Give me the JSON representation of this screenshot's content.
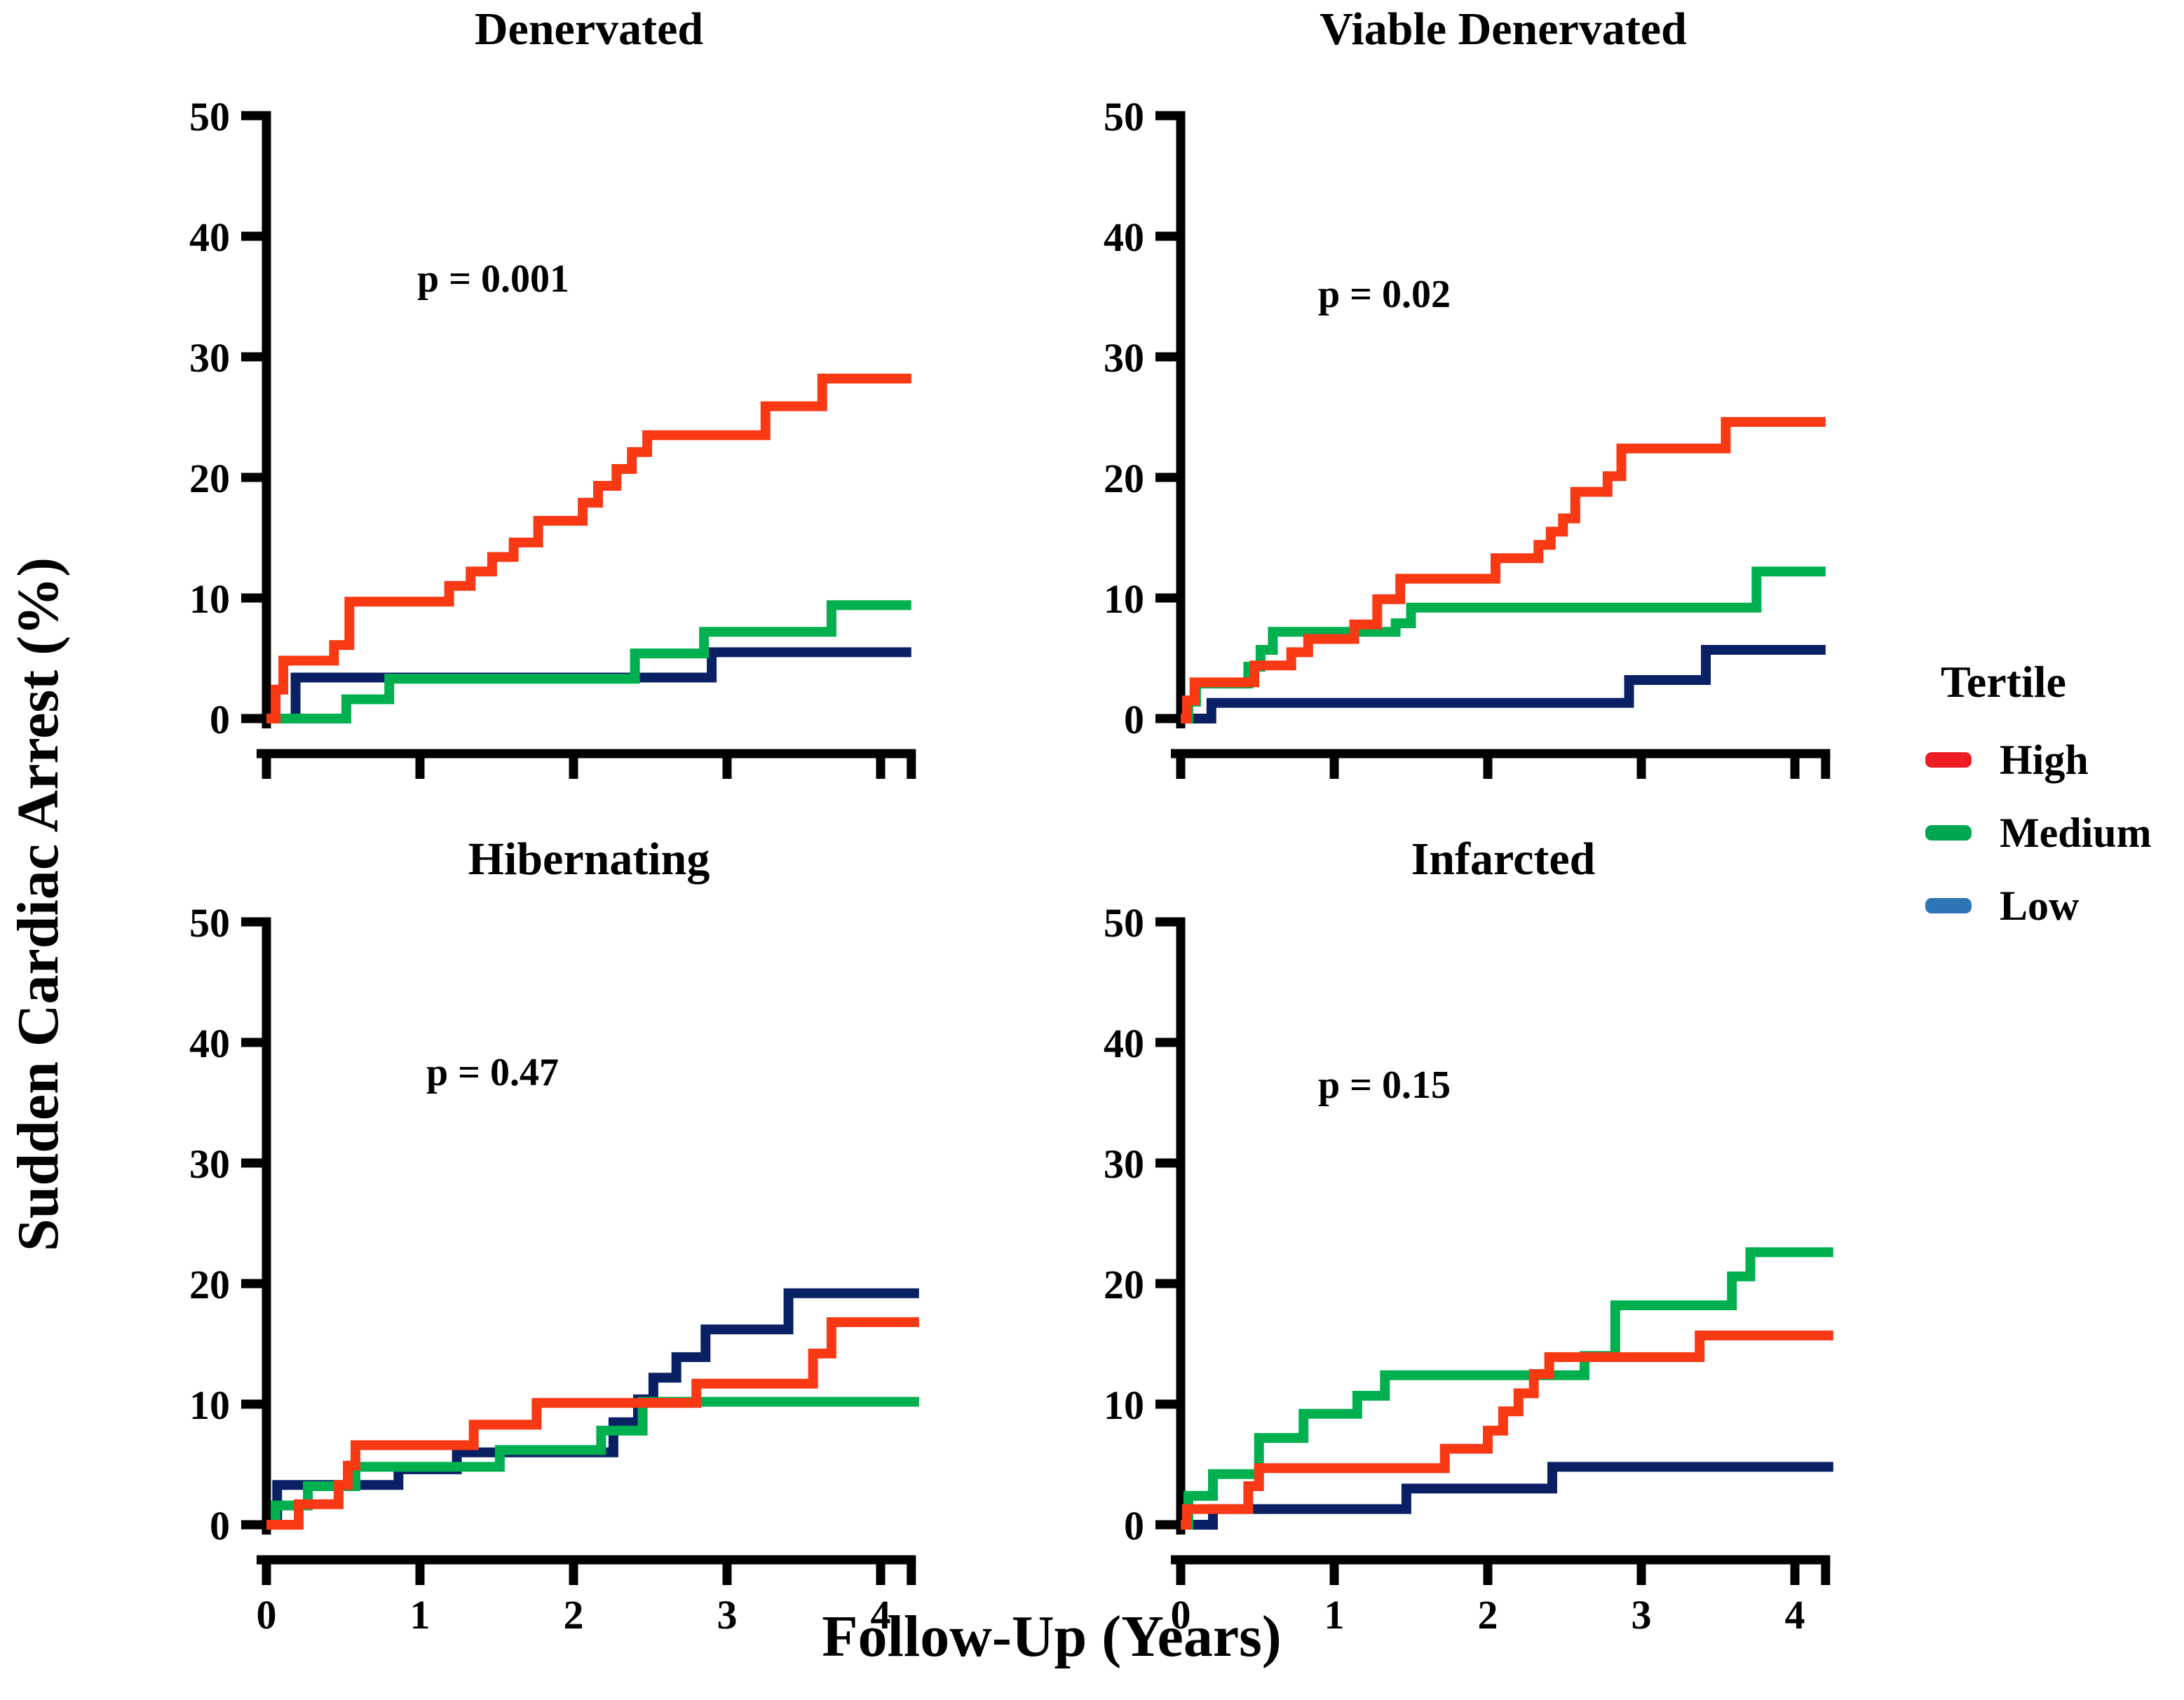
{
  "figure": {
    "x_axis_label": "Follow-Up (Years)",
    "y_axis_label": "Sudden Cardiac Arrest (%)",
    "background_color": "#ffffff",
    "axis_color": "#000000"
  },
  "legend": {
    "title": "Tertile",
    "items": [
      {
        "label": "High",
        "color": "#ee1c24"
      },
      {
        "label": "Medium",
        "color": "#00a651"
      },
      {
        "label": "Low",
        "color": "#2e75b6"
      }
    ]
  },
  "chart_data": [
    {
      "type": "line",
      "subtype": "kaplan-meier-step",
      "title": "Denervated",
      "p_label": "p = 0.001",
      "xlabel": "Follow-Up (Years)",
      "ylabel": "Sudden Cardiac Arrest (%)",
      "xlim": [
        0,
        4.3
      ],
      "ylim": [
        0,
        50
      ],
      "xticks": [
        0,
        1,
        2,
        3,
        4
      ],
      "yticks": [
        0,
        10,
        20,
        30,
        40,
        50
      ],
      "x_tick_labels_visible": false,
      "grid": false,
      "series": [
        {
          "name": "Low",
          "color": "#0a2065",
          "points": [
            [
              0,
              0
            ],
            [
              0.19,
              0
            ],
            [
              0.19,
              3.4
            ],
            [
              2.9,
              3.4
            ],
            [
              2.9,
              5.5
            ],
            [
              4.2,
              5.5
            ]
          ]
        },
        {
          "name": "Medium",
          "color": "#00b04f",
          "points": [
            [
              0,
              0
            ],
            [
              0.52,
              0
            ],
            [
              0.52,
              1.6
            ],
            [
              0.8,
              1.6
            ],
            [
              0.8,
              3.3
            ],
            [
              2.4,
              3.3
            ],
            [
              2.4,
              5.4
            ],
            [
              2.85,
              5.4
            ],
            [
              2.85,
              7.2
            ],
            [
              3.68,
              7.2
            ],
            [
              3.68,
              9.4
            ],
            [
              4.2,
              9.4
            ]
          ]
        },
        {
          "name": "High",
          "color": "#f83913",
          "points": [
            [
              0,
              0
            ],
            [
              0.06,
              0
            ],
            [
              0.06,
              2.4
            ],
            [
              0.11,
              2.4
            ],
            [
              0.11,
              4.8
            ],
            [
              0.44,
              4.8
            ],
            [
              0.44,
              6.1
            ],
            [
              0.54,
              6.1
            ],
            [
              0.54,
              9.7
            ],
            [
              1.19,
              9.7
            ],
            [
              1.19,
              11.0
            ],
            [
              1.33,
              11.0
            ],
            [
              1.33,
              12.2
            ],
            [
              1.47,
              12.2
            ],
            [
              1.47,
              13.4
            ],
            [
              1.61,
              13.4
            ],
            [
              1.61,
              14.6
            ],
            [
              1.77,
              14.6
            ],
            [
              1.77,
              16.4
            ],
            [
              2.06,
              16.4
            ],
            [
              2.06,
              17.9
            ],
            [
              2.16,
              17.9
            ],
            [
              2.16,
              19.3
            ],
            [
              2.28,
              19.3
            ],
            [
              2.28,
              20.7
            ],
            [
              2.38,
              20.7
            ],
            [
              2.38,
              22.1
            ],
            [
              2.48,
              22.1
            ],
            [
              2.48,
              23.5
            ],
            [
              3.25,
              23.5
            ],
            [
              3.25,
              25.9
            ],
            [
              3.62,
              25.9
            ],
            [
              3.62,
              28.2
            ],
            [
              4.2,
              28.2
            ]
          ]
        }
      ]
    },
    {
      "type": "line",
      "subtype": "kaplan-meier-step",
      "title": "Viable Denervated",
      "p_label": "p = 0.02",
      "xlabel": "Follow-Up (Years)",
      "ylabel": "Sudden Cardiac Arrest (%)",
      "xlim": [
        0,
        4.3
      ],
      "ylim": [
        0,
        50
      ],
      "xticks": [
        0,
        1,
        2,
        3,
        4
      ],
      "yticks": [
        0,
        10,
        20,
        30,
        40,
        50
      ],
      "x_tick_labels_visible": false,
      "grid": false,
      "series": [
        {
          "name": "Low",
          "color": "#0a2065",
          "points": [
            [
              0,
              0
            ],
            [
              0.2,
              0
            ],
            [
              0.2,
              1.3
            ],
            [
              2.92,
              1.3
            ],
            [
              2.92,
              3.2
            ],
            [
              3.42,
              3.2
            ],
            [
              3.42,
              5.7
            ],
            [
              4.2,
              5.7
            ]
          ]
        },
        {
          "name": "Medium",
          "color": "#00b04f",
          "points": [
            [
              0,
              0
            ],
            [
              0.05,
              0
            ],
            [
              0.05,
              1.4
            ],
            [
              0.1,
              1.4
            ],
            [
              0.1,
              2.9
            ],
            [
              0.44,
              2.9
            ],
            [
              0.44,
              4.3
            ],
            [
              0.52,
              4.3
            ],
            [
              0.52,
              5.7
            ],
            [
              0.6,
              5.7
            ],
            [
              0.6,
              7.2
            ],
            [
              1.4,
              7.2
            ],
            [
              1.4,
              7.9
            ],
            [
              1.5,
              7.9
            ],
            [
              1.5,
              9.2
            ],
            [
              3.75,
              9.2
            ],
            [
              3.75,
              12.2
            ],
            [
              4.2,
              12.2
            ]
          ]
        },
        {
          "name": "High",
          "color": "#f83913",
          "points": [
            [
              0,
              0
            ],
            [
              0.04,
              0
            ],
            [
              0.04,
              1.5
            ],
            [
              0.09,
              1.5
            ],
            [
              0.09,
              3.0
            ],
            [
              0.48,
              3.0
            ],
            [
              0.48,
              4.4
            ],
            [
              0.72,
              4.4
            ],
            [
              0.72,
              5.5
            ],
            [
              0.83,
              5.5
            ],
            [
              0.83,
              6.6
            ],
            [
              1.13,
              6.6
            ],
            [
              1.13,
              7.8
            ],
            [
              1.28,
              7.8
            ],
            [
              1.28,
              9.9
            ],
            [
              1.43,
              9.9
            ],
            [
              1.43,
              11.6
            ],
            [
              2.05,
              11.6
            ],
            [
              2.05,
              13.3
            ],
            [
              2.33,
              13.3
            ],
            [
              2.33,
              14.4
            ],
            [
              2.41,
              14.4
            ],
            [
              2.41,
              15.5
            ],
            [
              2.49,
              15.5
            ],
            [
              2.49,
              16.6
            ],
            [
              2.57,
              16.6
            ],
            [
              2.57,
              18.8
            ],
            [
              2.78,
              18.8
            ],
            [
              2.78,
              20.1
            ],
            [
              2.87,
              20.1
            ],
            [
              2.87,
              22.4
            ],
            [
              3.55,
              22.4
            ],
            [
              3.55,
              24.6
            ],
            [
              4.2,
              24.6
            ]
          ]
        }
      ]
    },
    {
      "type": "line",
      "subtype": "kaplan-meier-step",
      "title": "Hibernating",
      "p_label": "p = 0.47",
      "xlabel": "Follow-Up (Years)",
      "ylabel": "Sudden Cardiac Arrest (%)",
      "xlim": [
        0,
        4.3
      ],
      "ylim": [
        0,
        50
      ],
      "xticks": [
        0,
        1,
        2,
        3,
        4
      ],
      "yticks": [
        0,
        10,
        20,
        30,
        40,
        50
      ],
      "x_tick_labels_visible": true,
      "grid": false,
      "series": [
        {
          "name": "Low",
          "color": "#0a2065",
          "points": [
            [
              0,
              0
            ],
            [
              0.07,
              0
            ],
            [
              0.07,
              3.3
            ],
            [
              0.86,
              3.3
            ],
            [
              0.86,
              4.6
            ],
            [
              1.24,
              4.6
            ],
            [
              1.24,
              6.0
            ],
            [
              2.26,
              6.0
            ],
            [
              2.26,
              8.5
            ],
            [
              2.42,
              8.5
            ],
            [
              2.42,
              10.4
            ],
            [
              2.52,
              10.4
            ],
            [
              2.52,
              12.2
            ],
            [
              2.67,
              12.2
            ],
            [
              2.67,
              13.9
            ],
            [
              2.86,
              13.9
            ],
            [
              2.86,
              16.2
            ],
            [
              3.4,
              16.2
            ],
            [
              3.4,
              19.2
            ],
            [
              4.25,
              19.2
            ]
          ]
        },
        {
          "name": "Medium",
          "color": "#00b04f",
          "points": [
            [
              0,
              0
            ],
            [
              0.06,
              0
            ],
            [
              0.06,
              1.6
            ],
            [
              0.27,
              1.6
            ],
            [
              0.27,
              3.2
            ],
            [
              0.58,
              3.2
            ],
            [
              0.58,
              4.8
            ],
            [
              1.52,
              4.8
            ],
            [
              1.52,
              6.2
            ],
            [
              2.18,
              6.2
            ],
            [
              2.18,
              7.8
            ],
            [
              2.45,
              7.8
            ],
            [
              2.45,
              10.2
            ],
            [
              4.25,
              10.2
            ]
          ]
        },
        {
          "name": "High",
          "color": "#f83913",
          "points": [
            [
              0,
              0
            ],
            [
              0.21,
              0
            ],
            [
              0.21,
              1.7
            ],
            [
              0.47,
              1.7
            ],
            [
              0.47,
              3.3
            ],
            [
              0.53,
              3.3
            ],
            [
              0.53,
              4.9
            ],
            [
              0.58,
              4.9
            ],
            [
              0.58,
              6.6
            ],
            [
              1.35,
              6.6
            ],
            [
              1.35,
              8.3
            ],
            [
              1.76,
              8.3
            ],
            [
              1.76,
              10.1
            ],
            [
              2.8,
              10.1
            ],
            [
              2.8,
              11.7
            ],
            [
              3.56,
              11.7
            ],
            [
              3.56,
              14.2
            ],
            [
              3.68,
              14.2
            ],
            [
              3.68,
              16.8
            ],
            [
              4.25,
              16.8
            ]
          ]
        }
      ]
    },
    {
      "type": "line",
      "subtype": "kaplan-meier-step",
      "title": "Infarcted",
      "p_label": "p = 0.15",
      "xlabel": "Follow-Up (Years)",
      "ylabel": "Sudden Cardiac Arrest (%)",
      "xlim": [
        0,
        4.3
      ],
      "ylim": [
        0,
        50
      ],
      "xticks": [
        0,
        1,
        2,
        3,
        4
      ],
      "yticks": [
        0,
        10,
        20,
        30,
        40,
        50
      ],
      "x_tick_labels_visible": true,
      "grid": false,
      "series": [
        {
          "name": "Low",
          "color": "#0a2065",
          "points": [
            [
              0,
              0
            ],
            [
              0.21,
              0
            ],
            [
              0.21,
              1.3
            ],
            [
              1.47,
              1.3
            ],
            [
              1.47,
              3.0
            ],
            [
              2.42,
              3.0
            ],
            [
              2.42,
              4.8
            ],
            [
              4.25,
              4.8
            ]
          ]
        },
        {
          "name": "Medium",
          "color": "#00b04f",
          "points": [
            [
              0,
              0
            ],
            [
              0.05,
              0
            ],
            [
              0.05,
              2.4
            ],
            [
              0.21,
              2.4
            ],
            [
              0.21,
              4.2
            ],
            [
              0.51,
              4.2
            ],
            [
              0.51,
              7.2
            ],
            [
              0.8,
              7.2
            ],
            [
              0.8,
              9.2
            ],
            [
              1.15,
              9.2
            ],
            [
              1.15,
              10.7
            ],
            [
              1.33,
              10.7
            ],
            [
              1.33,
              12.4
            ],
            [
              2.63,
              12.4
            ],
            [
              2.63,
              14.0
            ],
            [
              2.83,
              14.0
            ],
            [
              2.83,
              18.2
            ],
            [
              3.59,
              18.2
            ],
            [
              3.59,
              20.6
            ],
            [
              3.71,
              20.6
            ],
            [
              3.71,
              22.6
            ],
            [
              4.25,
              22.6
            ]
          ]
        },
        {
          "name": "High",
          "color": "#f83913",
          "points": [
            [
              0,
              0
            ],
            [
              0.04,
              0
            ],
            [
              0.04,
              1.3
            ],
            [
              0.44,
              1.3
            ],
            [
              0.44,
              3.2
            ],
            [
              0.51,
              3.2
            ],
            [
              0.51,
              4.7
            ],
            [
              1.72,
              4.7
            ],
            [
              1.72,
              6.3
            ],
            [
              2.0,
              6.3
            ],
            [
              2.0,
              7.8
            ],
            [
              2.1,
              7.8
            ],
            [
              2.1,
              9.4
            ],
            [
              2.2,
              9.4
            ],
            [
              2.2,
              10.9
            ],
            [
              2.3,
              10.9
            ],
            [
              2.3,
              12.5
            ],
            [
              2.4,
              12.5
            ],
            [
              2.4,
              13.9
            ],
            [
              3.38,
              13.9
            ],
            [
              3.38,
              15.7
            ],
            [
              4.25,
              15.7
            ]
          ]
        }
      ]
    }
  ]
}
